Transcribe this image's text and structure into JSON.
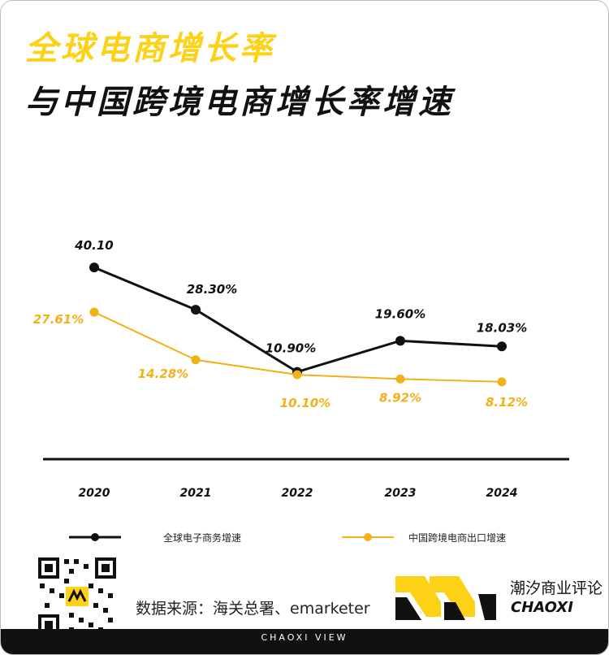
{
  "header": {
    "title_line1": "全球电商增长率",
    "title_line2": "与中国跨境电商增长率增速"
  },
  "chart_data": {
    "type": "line",
    "categories": [
      "2020",
      "2021",
      "2022",
      "2023",
      "2024"
    ],
    "series": [
      {
        "name": "全球电子商务增速",
        "values": [
          40.1,
          28.3,
          10.9,
          19.6,
          18.03
        ],
        "labels": [
          "40.10",
          "28.30%",
          "10.90%",
          "19.60%",
          "18.03%"
        ],
        "color": "#111111"
      },
      {
        "name": "中国跨境电商出口增速",
        "values": [
          27.61,
          14.28,
          10.1,
          8.92,
          8.12
        ],
        "labels": [
          "27.61%",
          "14.28%",
          "10.10%",
          "8.92%",
          "8.12%"
        ],
        "color": "#f2b117"
      }
    ],
    "legend_position": "bottom",
    "grid": false
  },
  "footer": {
    "source": "数据来源：海关总署、emarketer",
    "brand_cn": "潮汐商业评论",
    "brand_en": "CHAOXI",
    "tagline": "CHAOXI VIEW"
  },
  "colors": {
    "accent_yellow": "#fcd116",
    "orange_series": "#f2b117",
    "dark": "#111111"
  }
}
